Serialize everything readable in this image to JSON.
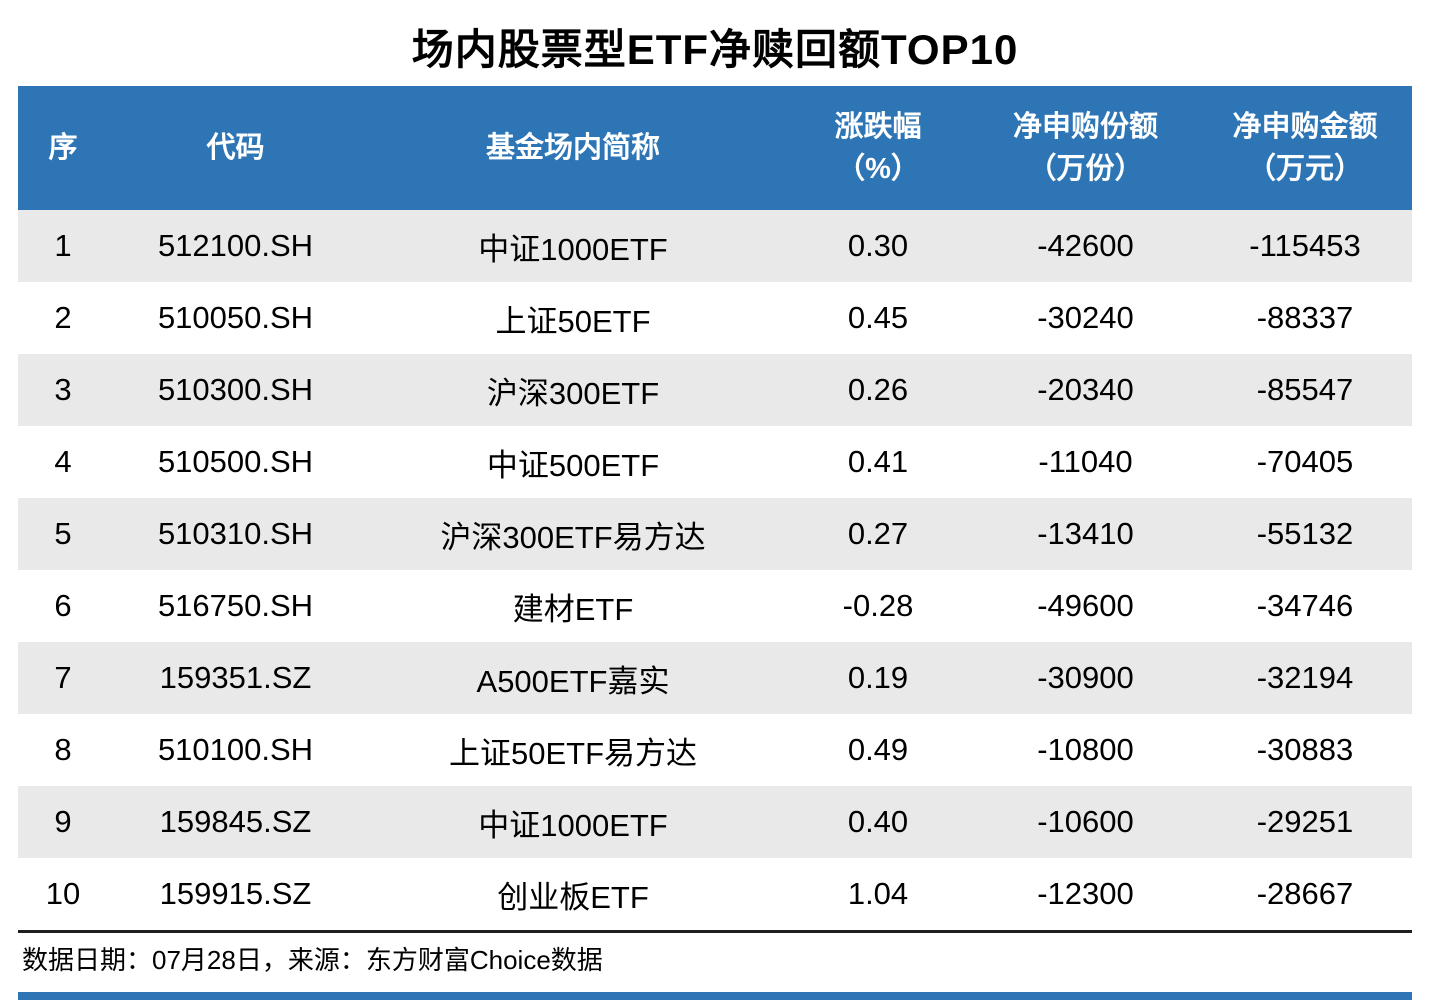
{
  "title": "场内股票型ETF净赎回额TOP10",
  "footer": "数据日期：07月28日，来源：东方财富Choice数据",
  "colors": {
    "header_bg": "#2E75B6",
    "stripe": "#E9E9E9",
    "accent": "#2E75B6",
    "divider": "#1F1F1F"
  },
  "table": {
    "headers": [
      {
        "line1": "序",
        "line2": ""
      },
      {
        "line1": "代码",
        "line2": ""
      },
      {
        "line1": "基金场内简称",
        "line2": ""
      },
      {
        "line1": "涨跌幅",
        "line2": "（%）"
      },
      {
        "line1": "净申购份额",
        "line2": "（万份）"
      },
      {
        "line1": "净申购金额",
        "line2": "（万元）"
      }
    ],
    "rows": [
      {
        "seq": "1",
        "code": "512100.SH",
        "name": "中证1000ETF",
        "change": "0.30",
        "net_shares": "-42600",
        "net_amount": "-115453"
      },
      {
        "seq": "2",
        "code": "510050.SH",
        "name": "上证50ETF",
        "change": "0.45",
        "net_shares": "-30240",
        "net_amount": "-88337"
      },
      {
        "seq": "3",
        "code": "510300.SH",
        "name": "沪深300ETF",
        "change": "0.26",
        "net_shares": "-20340",
        "net_amount": "-85547"
      },
      {
        "seq": "4",
        "code": "510500.SH",
        "name": "中证500ETF",
        "change": "0.41",
        "net_shares": "-11040",
        "net_amount": "-70405"
      },
      {
        "seq": "5",
        "code": "510310.SH",
        "name": "沪深300ETF易方达",
        "change": "0.27",
        "net_shares": "-13410",
        "net_amount": "-55132"
      },
      {
        "seq": "6",
        "code": "516750.SH",
        "name": "建材ETF",
        "change": "-0.28",
        "net_shares": "-49600",
        "net_amount": "-34746"
      },
      {
        "seq": "7",
        "code": "159351.SZ",
        "name": "A500ETF嘉实",
        "change": "0.19",
        "net_shares": "-30900",
        "net_amount": "-32194"
      },
      {
        "seq": "8",
        "code": "510100.SH",
        "name": "上证50ETF易方达",
        "change": "0.49",
        "net_shares": "-10800",
        "net_amount": "-30883"
      },
      {
        "seq": "9",
        "code": "159845.SZ",
        "name": "中证1000ETF",
        "change": "0.40",
        "net_shares": "-10600",
        "net_amount": "-29251"
      },
      {
        "seq": "10",
        "code": "159915.SZ",
        "name": "创业板ETF",
        "change": "1.04",
        "net_shares": "-12300",
        "net_amount": "-28667"
      }
    ]
  },
  "chart_data": {
    "type": "table",
    "title": "场内股票型ETF净赎回额TOP10",
    "columns": [
      "序",
      "代码",
      "基金场内简称",
      "涨跌幅（%）",
      "净申购份额（万份）",
      "净申购金额（万元）"
    ],
    "rows": [
      [
        1,
        "512100.SH",
        "中证1000ETF",
        0.3,
        -42600,
        -115453
      ],
      [
        2,
        "510050.SH",
        "上证50ETF",
        0.45,
        -30240,
        -88337
      ],
      [
        3,
        "510300.SH",
        "沪深300ETF",
        0.26,
        -20340,
        -85547
      ],
      [
        4,
        "510500.SH",
        "中证500ETF",
        0.41,
        -11040,
        -70405
      ],
      [
        5,
        "510310.SH",
        "沪深300ETF易方达",
        0.27,
        -13410,
        -55132
      ],
      [
        6,
        "516750.SH",
        "建材ETF",
        -0.28,
        -49600,
        -34746
      ],
      [
        7,
        "159351.SZ",
        "A500ETF嘉实",
        0.19,
        -30900,
        -32194
      ],
      [
        8,
        "510100.SH",
        "上证50ETF易方达",
        0.49,
        -10800,
        -30883
      ],
      [
        9,
        "159845.SZ",
        "中证1000ETF",
        0.4,
        -10600,
        -29251
      ],
      [
        10,
        "159915.SZ",
        "创业板ETF",
        1.04,
        -12300,
        -28667
      ]
    ],
    "source_note": "数据日期：07月28日，来源：东方财富Choice数据"
  }
}
